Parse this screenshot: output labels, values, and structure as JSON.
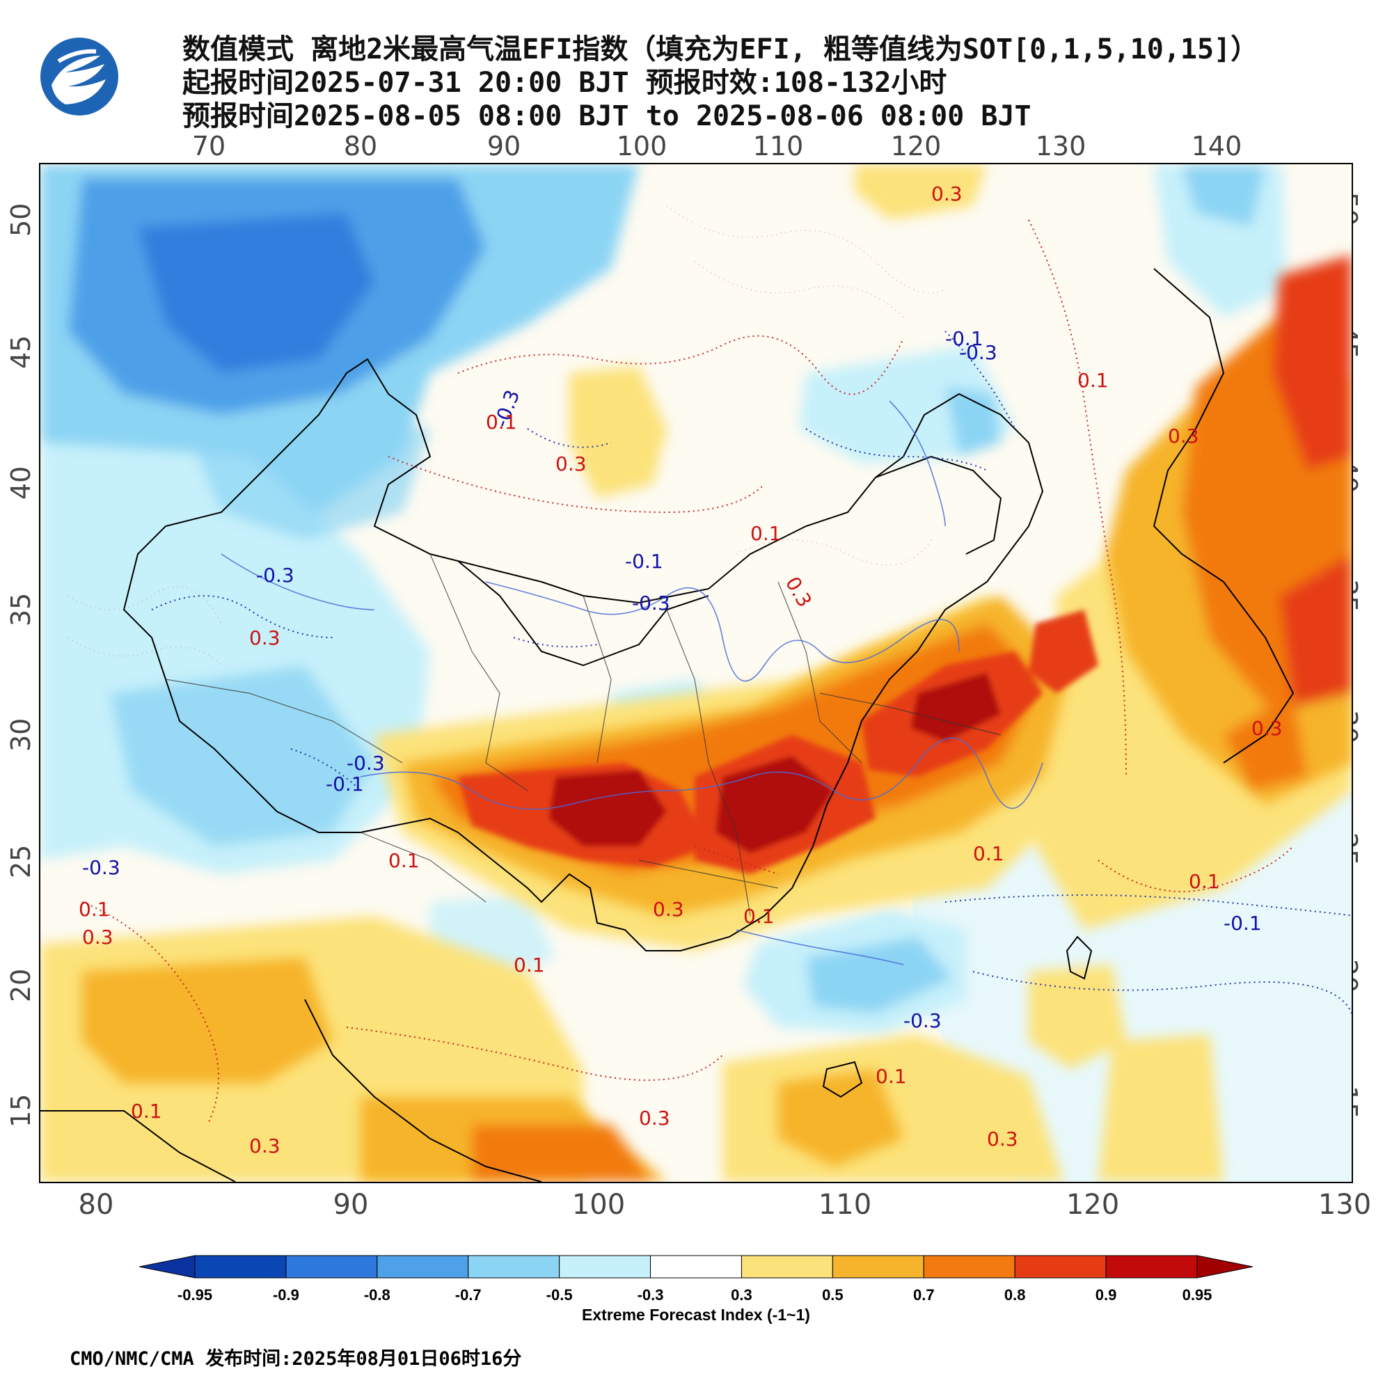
{
  "header": {
    "title_line1": "数值模式 离地2米最高气温EFI指数（填充为EFI, 粗等值线为SOT[0,1,5,10,15]）",
    "title_line2": "起报时间2025-07-31 20:00 BJT 预报时效:108-132小时",
    "title_line3": "预报时间2025-08-05 08:00 BJT to 2025-08-06 08:00 BJT"
  },
  "axes": {
    "top_lon_ticks": [
      "70",
      "80",
      "90",
      "100",
      "110",
      "120",
      "130",
      "140"
    ],
    "bottom_lon_ticks": [
      "80",
      "90",
      "100",
      "110",
      "120",
      "130"
    ],
    "left_lat_ticks": [
      "50",
      "45",
      "40",
      "35",
      "30",
      "25",
      "20",
      "15"
    ],
    "right_lat_ticks": [
      "50",
      "45",
      "40",
      "35",
      "30",
      "25",
      "20",
      "15"
    ]
  },
  "contour_labels": [
    {
      "text": "0.3",
      "color": "#cc1111"
    },
    {
      "text": "-0.3",
      "color": "#1111aa"
    },
    {
      "text": "0.1",
      "color": "#cc1111"
    },
    {
      "text": "-0.1",
      "color": "#1111aa"
    }
  ],
  "colorbar": {
    "title": "Extreme Forecast Index (-1~1)",
    "labels": [
      "-0.95",
      "-0.9",
      "-0.8",
      "-0.7",
      "-0.5",
      "-0.3",
      "0.3",
      "0.5",
      "0.7",
      "0.8",
      "0.9",
      "0.95"
    ],
    "colors": [
      "#0a46b4",
      "#2d78dc",
      "#4ea0e8",
      "#8cd4f4",
      "#c6f0fa",
      "#ffffff",
      "#fce27a",
      "#f6b42c",
      "#f27a10",
      "#e63c14",
      "#c20a0a"
    ],
    "end_low_color": "#0a32a0",
    "end_high_color": "#a00000"
  },
  "footer": {
    "text": "CMO/NMC/CMA 发布时间:2025年08月01日06时16分"
  },
  "legend_palette": {
    "strong_cold": "#2d78dc",
    "cold": "#8cd4f4",
    "weak_cold": "#c6f0fa",
    "neutral": "#fdfaf0",
    "warm": "#fce27a",
    "hot": "#f6b42c",
    "very_hot": "#f27a10",
    "extreme": "#e63c14",
    "max": "#b00808"
  }
}
